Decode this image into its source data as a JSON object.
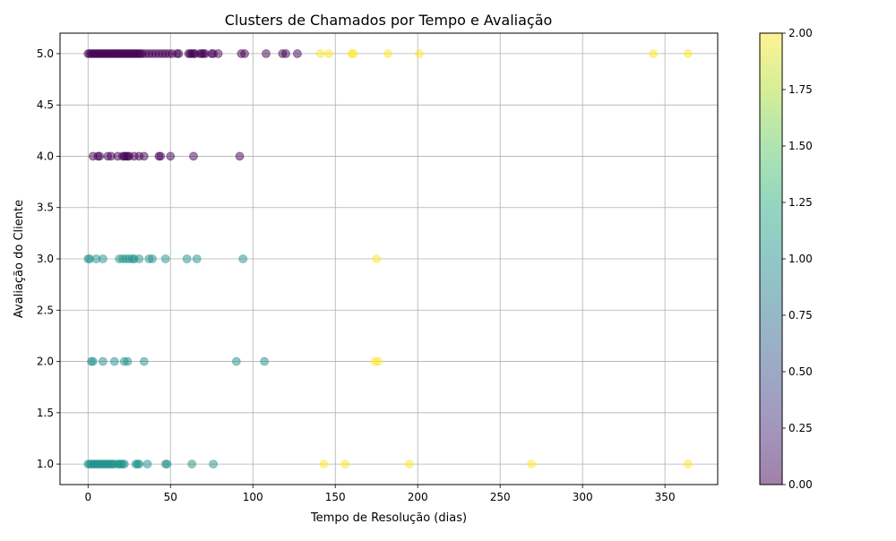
{
  "chart_data": {
    "type": "scatter",
    "title": "Clusters de Chamados por Tempo e Avaliação",
    "xlabel": "Tempo de Resolução (dias)",
    "ylabel": "Avaliação do Cliente",
    "xlim": [
      -17,
      382
    ],
    "ylim": [
      0.8,
      5.2
    ],
    "xticks": [
      0,
      50,
      100,
      150,
      200,
      250,
      300,
      350
    ],
    "yticks": [
      1.0,
      1.5,
      2.0,
      2.5,
      3.0,
      3.5,
      4.0,
      4.5,
      5.0
    ],
    "grid": true,
    "colorbar": {
      "range": [
        0,
        2
      ],
      "ticks": [
        0.0,
        0.25,
        0.5,
        0.75,
        1.0,
        1.25,
        1.5,
        1.75,
        2.0
      ],
      "colormap": "viridis"
    },
    "cluster_colors": {
      "0": "#440154",
      "1": "#21918c",
      "2": "#fde725"
    },
    "marker_alpha": 0.5,
    "points": [
      {
        "x": 0,
        "y": 5,
        "c": 0
      },
      {
        "x": 1,
        "y": 5,
        "c": 0
      },
      {
        "x": 2,
        "y": 5,
        "c": 0
      },
      {
        "x": 3,
        "y": 5,
        "c": 0
      },
      {
        "x": 4,
        "y": 5,
        "c": 0
      },
      {
        "x": 5,
        "y": 5,
        "c": 0
      },
      {
        "x": 6,
        "y": 5,
        "c": 0
      },
      {
        "x": 7,
        "y": 5,
        "c": 0
      },
      {
        "x": 8,
        "y": 5,
        "c": 0
      },
      {
        "x": 9,
        "y": 5,
        "c": 0
      },
      {
        "x": 10,
        "y": 5,
        "c": 0
      },
      {
        "x": 11,
        "y": 5,
        "c": 0
      },
      {
        "x": 12,
        "y": 5,
        "c": 0
      },
      {
        "x": 13,
        "y": 5,
        "c": 0
      },
      {
        "x": 14,
        "y": 5,
        "c": 0
      },
      {
        "x": 15,
        "y": 5,
        "c": 0
      },
      {
        "x": 16,
        "y": 5,
        "c": 0
      },
      {
        "x": 17,
        "y": 5,
        "c": 0
      },
      {
        "x": 18,
        "y": 5,
        "c": 0
      },
      {
        "x": 19,
        "y": 5,
        "c": 0
      },
      {
        "x": 20,
        "y": 5,
        "c": 0
      },
      {
        "x": 21,
        "y": 5,
        "c": 0
      },
      {
        "x": 22,
        "y": 5,
        "c": 0
      },
      {
        "x": 23,
        "y": 5,
        "c": 0
      },
      {
        "x": 24,
        "y": 5,
        "c": 0
      },
      {
        "x": 25,
        "y": 5,
        "c": 0
      },
      {
        "x": 26,
        "y": 5,
        "c": 0
      },
      {
        "x": 27,
        "y": 5,
        "c": 0
      },
      {
        "x": 28,
        "y": 5,
        "c": 0
      },
      {
        "x": 29,
        "y": 5,
        "c": 0
      },
      {
        "x": 30,
        "y": 5,
        "c": 0
      },
      {
        "x": 31,
        "y": 5,
        "c": 0
      },
      {
        "x": 32,
        "y": 5,
        "c": 0
      },
      {
        "x": 33,
        "y": 5,
        "c": 0
      },
      {
        "x": 35,
        "y": 5,
        "c": 0
      },
      {
        "x": 37,
        "y": 5,
        "c": 0
      },
      {
        "x": 39,
        "y": 5,
        "c": 0
      },
      {
        "x": 41,
        "y": 5,
        "c": 0
      },
      {
        "x": 43,
        "y": 5,
        "c": 0
      },
      {
        "x": 45,
        "y": 5,
        "c": 0
      },
      {
        "x": 47,
        "y": 5,
        "c": 0
      },
      {
        "x": 49,
        "y": 5,
        "c": 0
      },
      {
        "x": 51,
        "y": 5,
        "c": 0
      },
      {
        "x": 54,
        "y": 5,
        "c": 0
      },
      {
        "x": 55,
        "y": 5,
        "c": 0
      },
      {
        "x": 61,
        "y": 5,
        "c": 0
      },
      {
        "x": 62,
        "y": 5,
        "c": 0
      },
      {
        "x": 63,
        "y": 5,
        "c": 0
      },
      {
        "x": 64,
        "y": 5,
        "c": 0
      },
      {
        "x": 65,
        "y": 5,
        "c": 0
      },
      {
        "x": 68,
        "y": 5,
        "c": 0
      },
      {
        "x": 69,
        "y": 5,
        "c": 0
      },
      {
        "x": 70,
        "y": 5,
        "c": 0
      },
      {
        "x": 71,
        "y": 5,
        "c": 0
      },
      {
        "x": 75,
        "y": 5,
        "c": 0
      },
      {
        "x": 76,
        "y": 5,
        "c": 0
      },
      {
        "x": 79,
        "y": 5,
        "c": 0
      },
      {
        "x": 93,
        "y": 5,
        "c": 0
      },
      {
        "x": 95,
        "y": 5,
        "c": 0
      },
      {
        "x": 108,
        "y": 5,
        "c": 0
      },
      {
        "x": 118,
        "y": 5,
        "c": 0
      },
      {
        "x": 120,
        "y": 5,
        "c": 0
      },
      {
        "x": 127,
        "y": 5,
        "c": 0
      },
      {
        "x": 141,
        "y": 5,
        "c": 2
      },
      {
        "x": 146,
        "y": 5,
        "c": 2
      },
      {
        "x": 160,
        "y": 5,
        "c": 2
      },
      {
        "x": 161,
        "y": 5,
        "c": 2
      },
      {
        "x": 182,
        "y": 5,
        "c": 2
      },
      {
        "x": 201,
        "y": 5,
        "c": 2
      },
      {
        "x": 343,
        "y": 5,
        "c": 2
      },
      {
        "x": 364,
        "y": 5,
        "c": 2
      },
      {
        "x": 3,
        "y": 4,
        "c": 0
      },
      {
        "x": 6,
        "y": 4,
        "c": 0
      },
      {
        "x": 7,
        "y": 4,
        "c": 0
      },
      {
        "x": 12,
        "y": 4,
        "c": 0
      },
      {
        "x": 14,
        "y": 4,
        "c": 0
      },
      {
        "x": 18,
        "y": 4,
        "c": 0
      },
      {
        "x": 21,
        "y": 4,
        "c": 0
      },
      {
        "x": 22,
        "y": 4,
        "c": 0
      },
      {
        "x": 23,
        "y": 4,
        "c": 0
      },
      {
        "x": 24,
        "y": 4,
        "c": 0
      },
      {
        "x": 25,
        "y": 4,
        "c": 0
      },
      {
        "x": 28,
        "y": 4,
        "c": 0
      },
      {
        "x": 31,
        "y": 4,
        "c": 0
      },
      {
        "x": 34,
        "y": 4,
        "c": 0
      },
      {
        "x": 43,
        "y": 4,
        "c": 0
      },
      {
        "x": 44,
        "y": 4,
        "c": 0
      },
      {
        "x": 50,
        "y": 4,
        "c": 0
      },
      {
        "x": 64,
        "y": 4,
        "c": 0
      },
      {
        "x": 92,
        "y": 4,
        "c": 0
      },
      {
        "x": 0,
        "y": 3,
        "c": 1
      },
      {
        "x": 1,
        "y": 3,
        "c": 1
      },
      {
        "x": 5,
        "y": 3,
        "c": 1
      },
      {
        "x": 9,
        "y": 3,
        "c": 1
      },
      {
        "x": 19,
        "y": 3,
        "c": 1
      },
      {
        "x": 21,
        "y": 3,
        "c": 1
      },
      {
        "x": 23,
        "y": 3,
        "c": 1
      },
      {
        "x": 25,
        "y": 3,
        "c": 1
      },
      {
        "x": 27,
        "y": 3,
        "c": 1
      },
      {
        "x": 28,
        "y": 3,
        "c": 1
      },
      {
        "x": 31,
        "y": 3,
        "c": 1
      },
      {
        "x": 37,
        "y": 3,
        "c": 1
      },
      {
        "x": 39,
        "y": 3,
        "c": 1
      },
      {
        "x": 47,
        "y": 3,
        "c": 1
      },
      {
        "x": 60,
        "y": 3,
        "c": 1
      },
      {
        "x": 66,
        "y": 3,
        "c": 1
      },
      {
        "x": 94,
        "y": 3,
        "c": 1
      },
      {
        "x": 175,
        "y": 3,
        "c": 2
      },
      {
        "x": 2,
        "y": 2,
        "c": 1
      },
      {
        "x": 3,
        "y": 2,
        "c": 1
      },
      {
        "x": 9,
        "y": 2,
        "c": 1
      },
      {
        "x": 16,
        "y": 2,
        "c": 1
      },
      {
        "x": 22,
        "y": 2,
        "c": 1
      },
      {
        "x": 24,
        "y": 2,
        "c": 1
      },
      {
        "x": 34,
        "y": 2,
        "c": 1
      },
      {
        "x": 90,
        "y": 2,
        "c": 1
      },
      {
        "x": 107,
        "y": 2,
        "c": 1
      },
      {
        "x": 174,
        "y": 2,
        "c": 2
      },
      {
        "x": 176,
        "y": 2,
        "c": 2
      },
      {
        "x": 0,
        "y": 1,
        "c": 1
      },
      {
        "x": 1,
        "y": 1,
        "c": 1
      },
      {
        "x": 2,
        "y": 1,
        "c": 1
      },
      {
        "x": 3,
        "y": 1,
        "c": 1
      },
      {
        "x": 4,
        "y": 1,
        "c": 1
      },
      {
        "x": 5,
        "y": 1,
        "c": 1
      },
      {
        "x": 6,
        "y": 1,
        "c": 1
      },
      {
        "x": 7,
        "y": 1,
        "c": 1
      },
      {
        "x": 8,
        "y": 1,
        "c": 1
      },
      {
        "x": 9,
        "y": 1,
        "c": 1
      },
      {
        "x": 10,
        "y": 1,
        "c": 1
      },
      {
        "x": 11,
        "y": 1,
        "c": 1
      },
      {
        "x": 12,
        "y": 1,
        "c": 1
      },
      {
        "x": 13,
        "y": 1,
        "c": 1
      },
      {
        "x": 14,
        "y": 1,
        "c": 1
      },
      {
        "x": 15,
        "y": 1,
        "c": 1
      },
      {
        "x": 16,
        "y": 1,
        "c": 1
      },
      {
        "x": 18,
        "y": 1,
        "c": 1
      },
      {
        "x": 19,
        "y": 1,
        "c": 1
      },
      {
        "x": 20,
        "y": 1,
        "c": 1
      },
      {
        "x": 21,
        "y": 1,
        "c": 1
      },
      {
        "x": 22,
        "y": 1,
        "c": 1
      },
      {
        "x": 29,
        "y": 1,
        "c": 1
      },
      {
        "x": 30,
        "y": 1,
        "c": 1
      },
      {
        "x": 31,
        "y": 1,
        "c": 1
      },
      {
        "x": 36,
        "y": 1,
        "c": 1
      },
      {
        "x": 47,
        "y": 1,
        "c": 1
      },
      {
        "x": 48,
        "y": 1,
        "c": 1
      },
      {
        "x": 63,
        "y": 1,
        "c": 1
      },
      {
        "x": 76,
        "y": 1,
        "c": 1
      },
      {
        "x": 143,
        "y": 1,
        "c": 2
      },
      {
        "x": 156,
        "y": 1,
        "c": 2
      },
      {
        "x": 195,
        "y": 1,
        "c": 2
      },
      {
        "x": 269,
        "y": 1,
        "c": 2
      },
      {
        "x": 364,
        "y": 1,
        "c": 2
      }
    ]
  }
}
